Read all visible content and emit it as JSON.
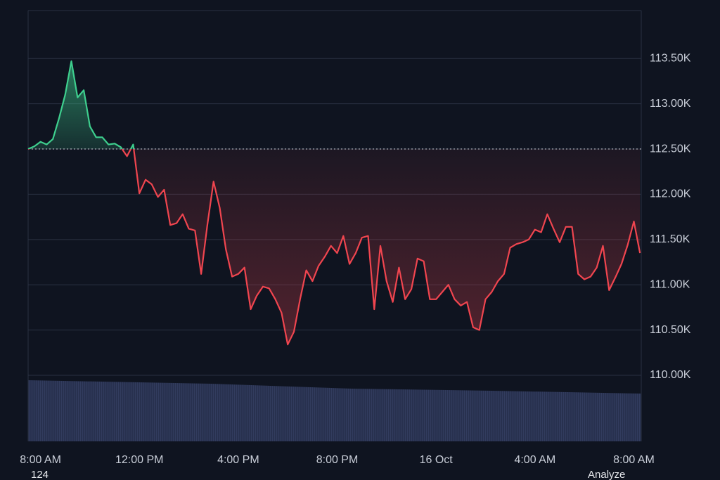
{
  "chart_data": {
    "type": "line",
    "x": [
      -0.5,
      -0.25,
      0,
      0.25,
      0.5,
      0.75,
      1,
      1.25,
      1.5,
      1.75,
      2,
      2.25,
      2.5,
      2.75,
      3,
      3.25,
      3.5,
      3.75,
      4,
      4.25,
      4.5,
      4.75,
      5,
      5.25,
      5.5,
      5.75,
      6,
      6.25,
      6.5,
      6.75,
      7,
      7.25,
      7.5,
      7.75,
      8,
      8.25,
      8.5,
      8.75,
      9,
      9.25,
      9.5,
      9.75,
      10,
      10.25,
      10.5,
      10.75,
      11,
      11.25,
      11.5,
      11.75,
      12,
      12.25,
      12.5,
      12.75,
      13,
      13.25,
      13.5,
      13.75,
      14,
      14.25,
      14.5,
      14.75,
      15,
      15.25,
      15.5,
      15.75,
      16,
      16.25,
      16.5,
      16.75,
      17,
      17.25,
      17.5,
      17.75,
      18,
      18.25,
      18.5,
      18.75,
      19,
      19.25,
      19.5,
      19.75,
      20,
      20.25,
      20.5,
      20.75,
      21,
      21.25,
      21.5,
      21.75,
      22,
      22.25,
      22.5,
      22.75,
      23,
      23.25,
      23.5,
      23.75,
      24,
      24.25
    ],
    "values": [
      112.5,
      112.53,
      112.58,
      112.55,
      112.61,
      112.84,
      113.1,
      113.47,
      113.07,
      113.15,
      112.75,
      112.63,
      112.63,
      112.55,
      112.56,
      112.52,
      112.42,
      112.55,
      112.01,
      112.16,
      112.11,
      111.97,
      112.05,
      111.66,
      111.68,
      111.78,
      111.62,
      111.6,
      111.12,
      111.66,
      112.14,
      111.85,
      111.39,
      111.09,
      111.12,
      111.19,
      110.73,
      110.88,
      110.98,
      110.96,
      110.84,
      110.69,
      110.34,
      110.48,
      110.84,
      111.16,
      111.04,
      111.21,
      111.31,
      111.43,
      111.35,
      111.54,
      111.23,
      111.35,
      111.52,
      111.54,
      110.73,
      111.43,
      111.04,
      110.81,
      111.19,
      110.84,
      110.95,
      111.29,
      111.26,
      110.84,
      110.84,
      110.92,
      111.0,
      110.84,
      110.77,
      110.81,
      110.53,
      110.5,
      110.84,
      110.92,
      111.04,
      111.12,
      111.41,
      111.45,
      111.47,
      111.5,
      111.61,
      111.58,
      111.78,
      111.62,
      111.47,
      111.64,
      111.64,
      111.12,
      111.06,
      111.09,
      111.19,
      111.43,
      110.94,
      111.08,
      111.23,
      111.44,
      111.7,
      111.35
    ],
    "baseline": 112.5,
    "up_color": "#3ecf8e",
    "down_color": "#f0454f",
    "xlim": [
      -0.5,
      24.3
    ],
    "xticks": [
      {
        "value": 0,
        "label": "8:00 AM"
      },
      {
        "value": 4,
        "label": "12:00 PM"
      },
      {
        "value": 8,
        "label": "4:00 PM"
      },
      {
        "value": 12,
        "label": "8:00 PM"
      },
      {
        "value": 16,
        "label": "16 Oct"
      },
      {
        "value": 20,
        "label": "4:00 AM"
      },
      {
        "value": 24,
        "label": "8:00 AM"
      }
    ],
    "ylim": [
      109.27,
      114.03
    ],
    "yticks": [
      {
        "value": 110,
        "label": "110.00K"
      },
      {
        "value": 110.5,
        "label": "110.50K"
      },
      {
        "value": 111,
        "label": "111.00K"
      },
      {
        "value": 111.5,
        "label": "111.50K"
      },
      {
        "value": 112,
        "label": "112.00K"
      },
      {
        "value": 112.5,
        "label": "112.50K"
      },
      {
        "value": 113,
        "label": "113.00K"
      },
      {
        "value": 113.5,
        "label": "113.50K"
      }
    ],
    "grid": true,
    "footer_left": "124",
    "footer_right": "Analyze"
  }
}
